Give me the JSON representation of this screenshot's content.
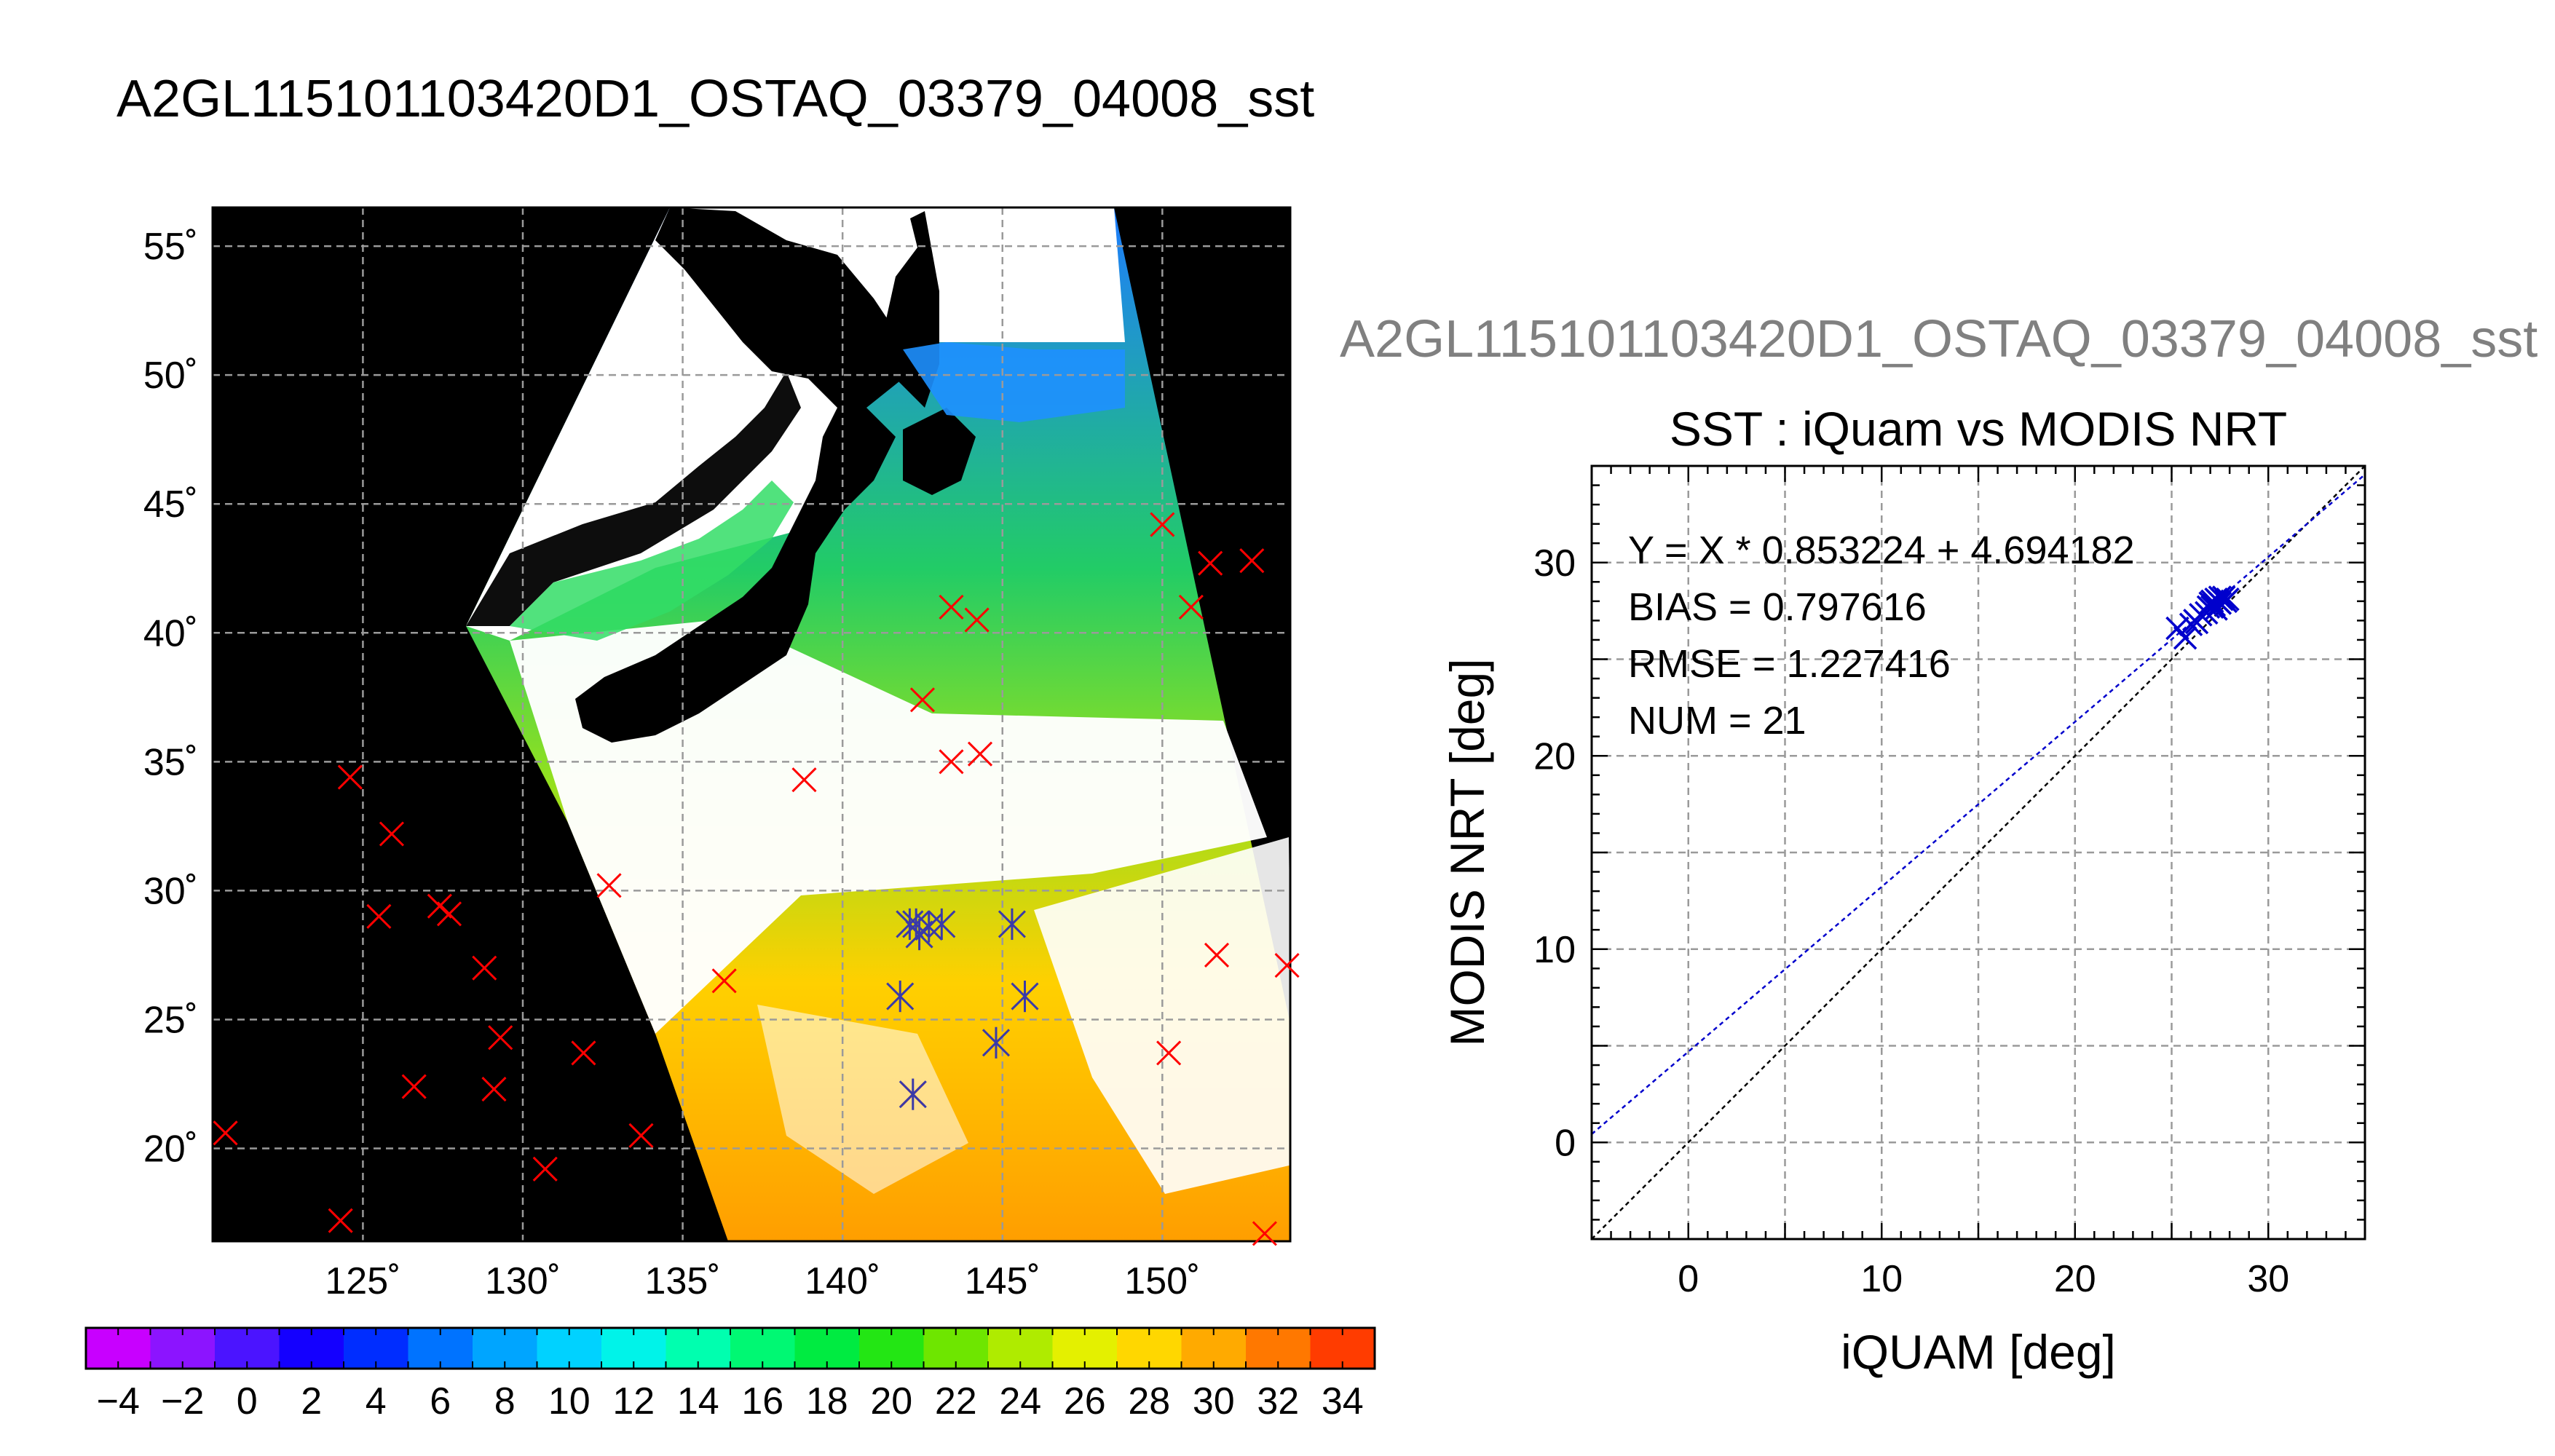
{
  "figure": {
    "main_title": "A2GL115101103420D1_OSTAQ_03379_04008_sst",
    "overflow_title": "A2GL115101103420D1_OSTAQ_03379_04008_sst"
  },
  "colorbar": {
    "range": [
      -5,
      35
    ],
    "step": 2,
    "tick_labels": [
      "−4",
      "−2",
      "0",
      "2",
      "4",
      "6",
      "8",
      "10",
      "12",
      "14",
      "16",
      "18",
      "20",
      "22",
      "24",
      "26",
      "28",
      "30",
      "32",
      "34"
    ],
    "tick_values": [
      -4,
      -2,
      0,
      2,
      4,
      6,
      8,
      10,
      12,
      14,
      16,
      18,
      20,
      22,
      24,
      26,
      28,
      30,
      32,
      34
    ]
  },
  "chart_data": [
    {
      "type": "scatter",
      "title": "",
      "xlabel": "",
      "ylabel": "",
      "xlim": [
        120.3,
        154.0
      ],
      "ylim": [
        16.4,
        56.5
      ],
      "grid": true,
      "x_tick_values": [
        125,
        130,
        135,
        140,
        145,
        150
      ],
      "x_tick_labels": [
        "125˚",
        "130˚",
        "135˚",
        "140˚",
        "145˚",
        "150˚"
      ],
      "y_tick_values": [
        20,
        25,
        30,
        35,
        40,
        45,
        50,
        55
      ],
      "y_tick_labels": [
        "20˚",
        "25˚",
        "30˚",
        "35˚",
        "40˚",
        "45˚",
        "50˚",
        "55˚"
      ],
      "series": [
        {
          "marker": "x",
          "color": "#ff0000",
          "points": [
            [
              124.6,
              34.4
            ],
            [
              125.5,
              29.0
            ],
            [
              125.9,
              32.2
            ],
            [
              126.6,
              22.4
            ],
            [
              127.4,
              29.4
            ],
            [
              127.7,
              29.1
            ],
            [
              128.8,
              27.0
            ],
            [
              129.1,
              22.3
            ],
            [
              129.3,
              24.3
            ],
            [
              130.7,
              19.2
            ],
            [
              131.9,
              23.7
            ],
            [
              132.7,
              30.2
            ],
            [
              133.7,
              20.5
            ],
            [
              120.7,
              20.6
            ],
            [
              124.3,
              17.2
            ],
            [
              136.3,
              26.5
            ],
            [
              138.8,
              34.3
            ],
            [
              142.5,
              37.4
            ],
            [
              143.4,
              41.0
            ],
            [
              144.2,
              40.5
            ],
            [
              143.4,
              35.0
            ],
            [
              144.3,
              35.3
            ],
            [
              150.0,
              44.2
            ],
            [
              150.9,
              41.0
            ],
            [
              151.5,
              42.7
            ],
            [
              152.8,
              42.8
            ],
            [
              151.7,
              27.5
            ],
            [
              150.2,
              23.7
            ],
            [
              153.9,
              27.1
            ],
            [
              153.2,
              16.7
            ],
            [
              142.2,
              22.1
            ]
          ]
        },
        {
          "marker": "asterisk",
          "color": "#3a3aa8",
          "points": [
            [
              142.1,
              28.7
            ],
            [
              142.4,
              28.3
            ],
            [
              142.3,
              28.7
            ],
            [
              142.7,
              28.6
            ],
            [
              143.1,
              28.7
            ],
            [
              145.3,
              28.7
            ],
            [
              141.8,
              25.9
            ],
            [
              145.7,
              25.9
            ],
            [
              144.8,
              24.1
            ],
            [
              142.2,
              22.1
            ]
          ]
        }
      ]
    },
    {
      "type": "scatter",
      "title": "SST : iQuam vs MODIS NRT",
      "xlabel": "iQUAM [deg]",
      "ylabel": "MODIS NRT [deg]",
      "xlim": [
        -5,
        35
      ],
      "ylim": [
        -5,
        35
      ],
      "grid": true,
      "x_ticks": [
        0,
        10,
        20,
        30
      ],
      "y_ticks": [
        0,
        10,
        20,
        30
      ],
      "fit": {
        "slope": 0.853224,
        "intercept": 4.694182,
        "color": "#0000cc"
      },
      "identity_color": "#000000",
      "annotations": [
        "Y = X * 0.853224 + 4.694182",
        "BIAS = 0.797616",
        "RMSE = 1.227416",
        "NUM = 21"
      ],
      "points": [
        [
          25.3,
          26.6
        ],
        [
          25.7,
          26.1
        ],
        [
          26.0,
          26.8
        ],
        [
          26.2,
          27.0
        ],
        [
          26.5,
          27.3
        ],
        [
          26.9,
          27.7
        ],
        [
          27.0,
          27.9
        ],
        [
          27.1,
          28.0
        ],
        [
          27.2,
          27.8
        ],
        [
          27.3,
          28.1
        ],
        [
          27.4,
          28.0
        ],
        [
          27.5,
          27.9
        ],
        [
          27.6,
          28.1
        ],
        [
          27.3,
          27.6
        ],
        [
          27.1,
          27.7
        ],
        [
          26.8,
          27.4
        ],
        [
          27.7,
          28.2
        ],
        [
          27.8,
          28.0
        ],
        [
          26.3,
          26.9
        ],
        [
          27.5,
          28.2
        ],
        [
          27.9,
          28.1
        ]
      ]
    }
  ],
  "icons": {
    "map_land": "land-mask",
    "map_sst_field": "sst-swath-field"
  }
}
